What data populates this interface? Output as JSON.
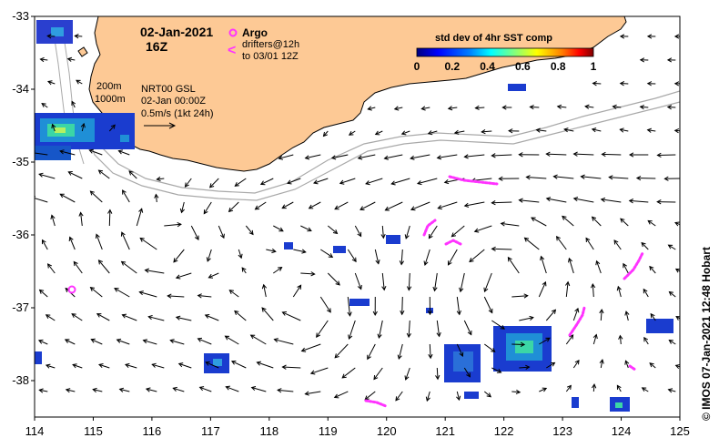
{
  "header": {
    "date": "02-Jan-2021",
    "time": "16Z"
  },
  "legend": {
    "argo_label": "Argo",
    "drifters_line1": "drifters@12h",
    "drifters_line2": "to 03/01 12Z",
    "drifter_symbol": "<",
    "colorbar_title": "std dev of 4hr SST comp",
    "colorbar_ticks": [
      "0",
      "0.2",
      "0.4",
      "0.6",
      "0.8",
      "1"
    ],
    "colorbar_colors": [
      "#00007f",
      "#0000ff",
      "#007fff",
      "#00ffff",
      "#7fff7f",
      "#ffff00",
      "#ff7f00",
      "#ff0000",
      "#7f0000"
    ]
  },
  "notes": {
    "contour_200": "200m",
    "contour_1000": "1000m",
    "product": "NRT00 GSL",
    "product_time": "02-Jan 00:00Z",
    "scale": "0.5m/s (1kt 24h)"
  },
  "credit": "© IMOS 07-Jan-2021 12:48 Hobart",
  "axes": {
    "x_ticks": [
      "114",
      "115",
      "116",
      "117",
      "118",
      "119",
      "120",
      "121",
      "122",
      "123",
      "124",
      "125"
    ],
    "y_ticks": [
      "-33",
      "-34",
      "-35",
      "-36",
      "-37",
      "-38"
    ],
    "lon_range": [
      114,
      125
    ],
    "lat_range": [
      -38.5,
      -33
    ]
  },
  "colors": {
    "land": "#fdc995",
    "drifter": "#ff33ff",
    "isobath": "#a9a9a9"
  }
}
